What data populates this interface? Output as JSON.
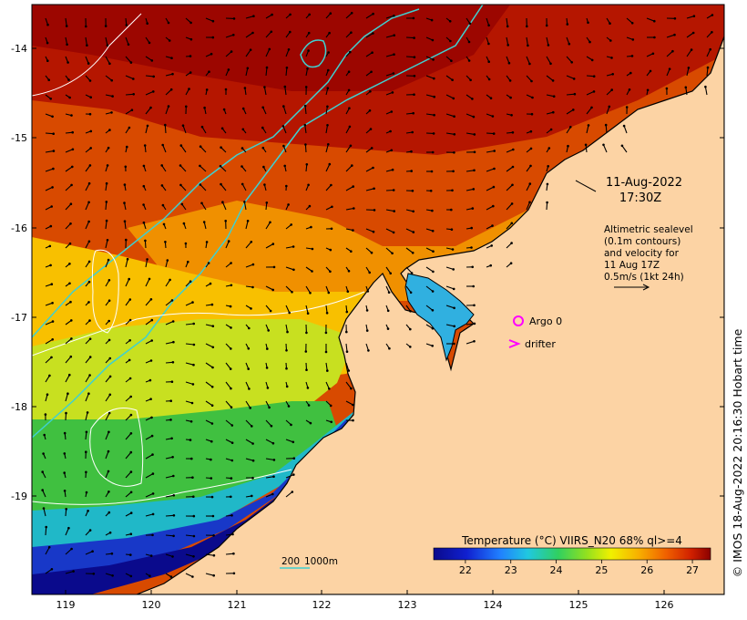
{
  "map": {
    "lat_ticks": [
      "-14",
      "-15",
      "-16",
      "-17",
      "-18",
      "-19"
    ],
    "lon_ticks": [
      "119",
      "120",
      "121",
      "122",
      "123",
      "124",
      "125",
      "126"
    ],
    "title": {
      "date": "11-Aug-2022",
      "time": "17:30Z"
    },
    "info_lines": [
      "Altimetric sealevel",
      "(0.1m contours)",
      "and velocity for",
      "11 Aug 17Z",
      "0.5m/s (1kt 24h)"
    ],
    "argo_label": "Argo 0",
    "drifter_label": "drifter",
    "depth_scale": {
      "a": "200",
      "b": "1000m"
    },
    "copyright": "© IMOS 18-Aug-2022 20:16:30 Hobart time"
  },
  "colorbar": {
    "title": "Temperature (°C) VIIRS_N20 68% ql>=4",
    "ticks": [
      "22",
      "23",
      "24",
      "25",
      "26",
      "27"
    ],
    "min": 21.3,
    "max": 27.4
  },
  "colors": {
    "land": "#fcd3a4",
    "coast": "#000000",
    "isobath": "#3fd0d0",
    "sealevel_contour": "#ffffff",
    "marker": "#ff00ff"
  }
}
